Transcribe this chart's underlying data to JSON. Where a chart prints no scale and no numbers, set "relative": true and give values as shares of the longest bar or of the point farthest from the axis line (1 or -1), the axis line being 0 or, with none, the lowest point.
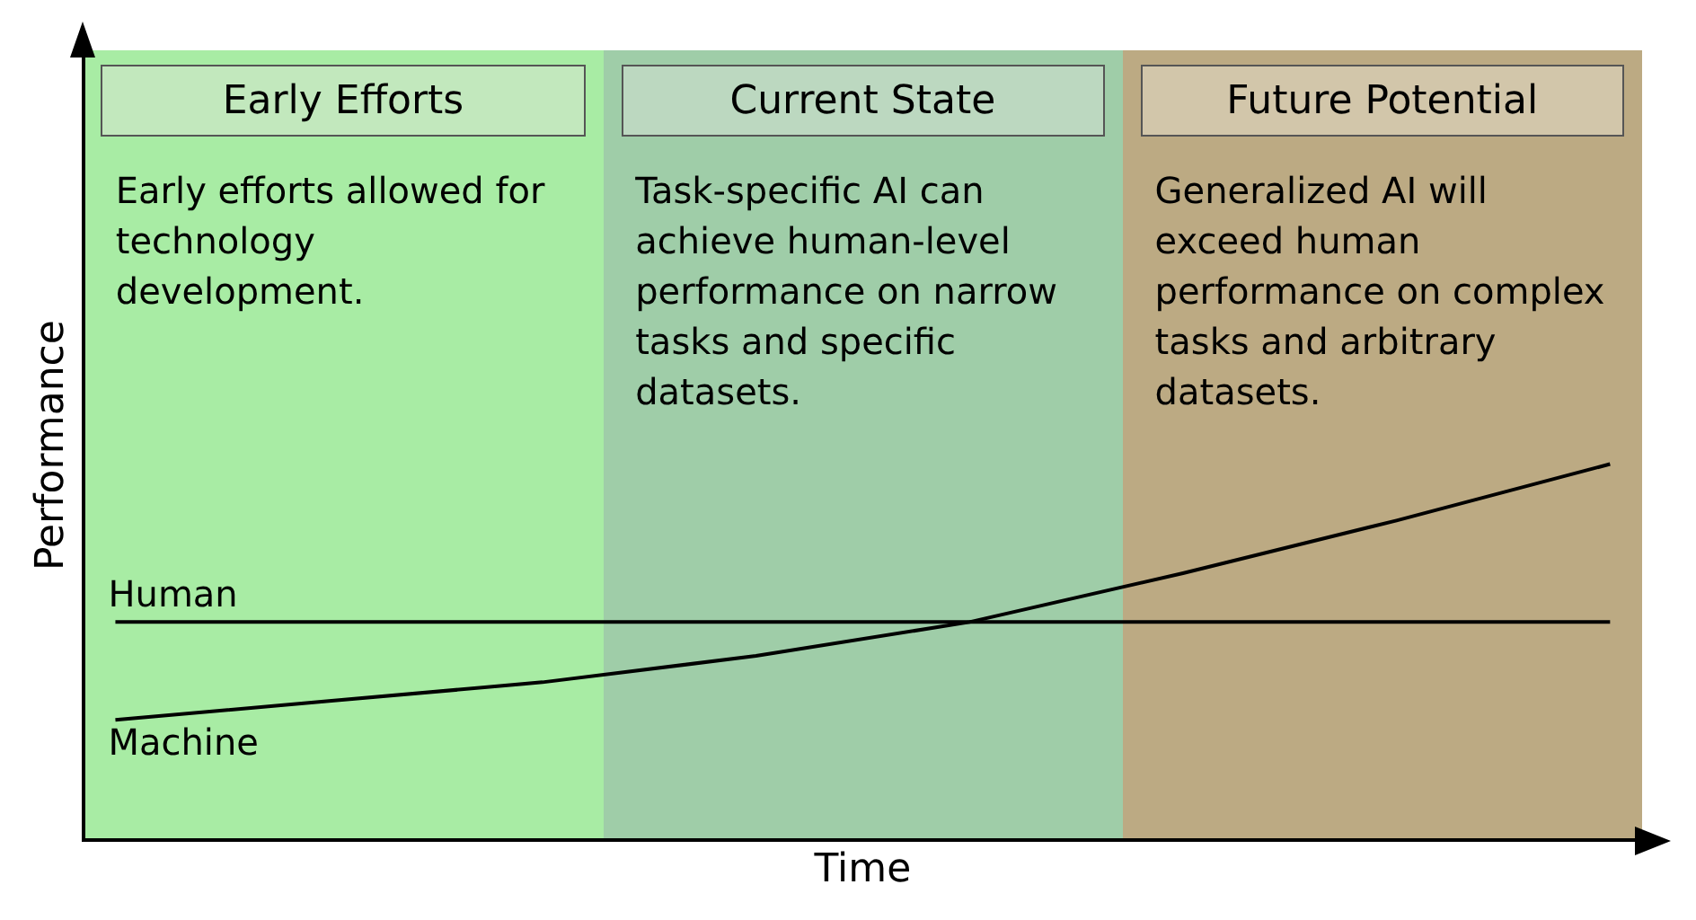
{
  "chart_data": {
    "type": "line",
    "relative": true,
    "xlabel": "Time",
    "ylabel": "Performance",
    "categories": [
      null,
      null,
      null,
      null,
      null,
      null,
      null,
      null
    ],
    "legend": false,
    "grid": false,
    "marker": "none",
    "line_style": "solid",
    "series": [
      {
        "name": "Human",
        "color": "#000000",
        "values": [
          0.58,
          0.58,
          0.58,
          0.58,
          0.58,
          0.58,
          0.58,
          0.58
        ]
      },
      {
        "name": "Machine",
        "color": "#000000",
        "values": [
          0.32,
          0.37,
          0.42,
          0.49,
          0.58,
          0.71,
          0.85,
          1
        ]
      }
    ],
    "annotations": [
      "Early Efforts",
      "Early efforts allowed for technology development.",
      "Current State",
      "Task-specific AI can achieve human-level performance on narrow tasks and specific datasets.",
      "Future Potential",
      "Generalized AI will exceed human performance on complex tasks and arbitrary datasets."
    ]
  }
}
